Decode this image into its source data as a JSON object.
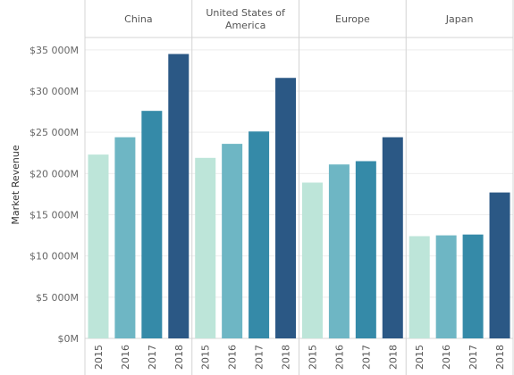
{
  "chart_data": {
    "type": "bar",
    "ylabel": "Market Revenue",
    "yticks": [
      "$0M",
      "$5 000M",
      "$10 000M",
      "$15 000M",
      "$20 000M",
      "$25 000M",
      "$30 000M",
      "$35 000M"
    ],
    "ytick_values": [
      0,
      5000,
      10000,
      15000,
      20000,
      25000,
      30000,
      35000
    ],
    "ylim": [
      0,
      36500
    ],
    "categories": [
      "2015",
      "2016",
      "2017",
      "2018"
    ],
    "colors": [
      "#bde5d9",
      "#6eb6c4",
      "#358aa8",
      "#2b5885"
    ],
    "grid": true,
    "panels": [
      {
        "name_lines": [
          "China"
        ],
        "values": [
          22300,
          24400,
          27600,
          34500
        ]
      },
      {
        "name_lines": [
          "United States of",
          "America"
        ],
        "values": [
          21900,
          23600,
          25100,
          31600
        ]
      },
      {
        "name_lines": [
          "Europe"
        ],
        "values": [
          18900,
          21100,
          21500,
          24400
        ]
      },
      {
        "name_lines": [
          "Japan"
        ],
        "values": [
          12400,
          12500,
          12600,
          17700
        ]
      }
    ]
  }
}
